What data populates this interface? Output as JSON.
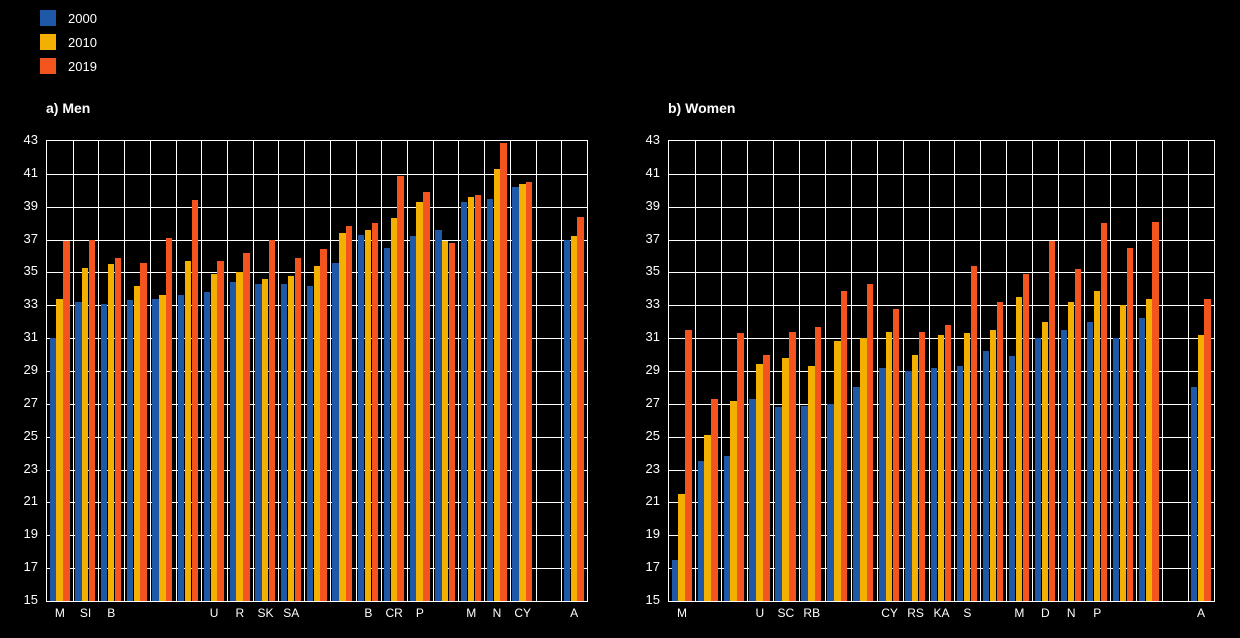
{
  "page": {
    "background": "#000000"
  },
  "legend": {
    "items": [
      {
        "label": "2000",
        "color": "#2058a8"
      },
      {
        "label": "2010",
        "color": "#f3b000"
      },
      {
        "label": "2019",
        "color": "#f4541d"
      }
    ]
  },
  "y_axis": {
    "min": 15,
    "max": 43,
    "step": 2,
    "ticks": [
      "15",
      "17",
      "19",
      "21",
      "23",
      "25",
      "27",
      "29",
      "31",
      "33",
      "35",
      "37",
      "39",
      "41",
      "43"
    ]
  },
  "chart_data": [
    {
      "type": "bar",
      "title": "a) Men",
      "ylim": [
        15,
        43
      ],
      "grid": true,
      "gap_before_last_category": true,
      "categories": [
        "M",
        "SI",
        "B",
        "",
        "",
        "",
        "U",
        "R",
        "SK",
        "SA",
        "",
        "",
        "B",
        "CR",
        "P",
        "",
        "M",
        "N",
        "CY",
        "A"
      ],
      "series": [
        {
          "name": "2000",
          "color": "#2058a8",
          "values": [
            31.0,
            33.2,
            33.1,
            33.3,
            33.4,
            33.6,
            33.8,
            34.4,
            34.3,
            34.3,
            34.2,
            35.6,
            37.3,
            36.5,
            37.2,
            37.6,
            39.3,
            39.5,
            40.2,
            37.0
          ]
        },
        {
          "name": "2010",
          "color": "#f3b000",
          "values": [
            33.4,
            35.3,
            35.5,
            34.2,
            33.6,
            35.7,
            34.9,
            35.0,
            34.6,
            34.8,
            35.4,
            37.4,
            37.6,
            38.3,
            39.3,
            36.9,
            39.6,
            41.3,
            40.4,
            37.2
          ]
        },
        {
          "name": "2019",
          "color": "#f4541d",
          "values": [
            36.9,
            37.0,
            35.9,
            35.6,
            37.1,
            39.4,
            35.7,
            36.2,
            37.0,
            35.9,
            36.4,
            37.8,
            38.0,
            40.9,
            39.9,
            36.8,
            39.7,
            42.9,
            40.5,
            38.4
          ]
        }
      ]
    },
    {
      "type": "bar",
      "title": "b) Women",
      "ylim": [
        15,
        43
      ],
      "grid": true,
      "gap_before_last_category": true,
      "categories": [
        "M",
        "",
        "",
        "U",
        "SC",
        "RB",
        "",
        "",
        "CY",
        "RS",
        "KA",
        "S",
        "",
        "M",
        "D",
        "N",
        "P",
        "",
        "",
        "A"
      ],
      "series": [
        {
          "name": "2000",
          "color": "#2058a8",
          "values": [
            17.5,
            23.5,
            23.8,
            27.3,
            26.8,
            26.9,
            27.0,
            28.0,
            29.2,
            29.0,
            29.2,
            29.3,
            30.2,
            29.9,
            31.0,
            31.5,
            32.0,
            31.0,
            32.2,
            28.0
          ]
        },
        {
          "name": "2010",
          "color": "#f3b000",
          "values": [
            21.5,
            25.1,
            27.2,
            29.4,
            29.8,
            29.3,
            30.8,
            31.0,
            31.4,
            30.0,
            31.2,
            31.3,
            31.5,
            33.5,
            32.0,
            33.2,
            33.9,
            33.0,
            33.4,
            31.2
          ]
        },
        {
          "name": "2019",
          "color": "#f4541d",
          "values": [
            31.5,
            27.3,
            31.3,
            30.0,
            31.4,
            31.7,
            33.9,
            34.3,
            32.8,
            31.4,
            31.8,
            35.4,
            33.2,
            34.9,
            36.9,
            35.2,
            38.0,
            36.5,
            38.1,
            33.4
          ]
        }
      ]
    }
  ]
}
